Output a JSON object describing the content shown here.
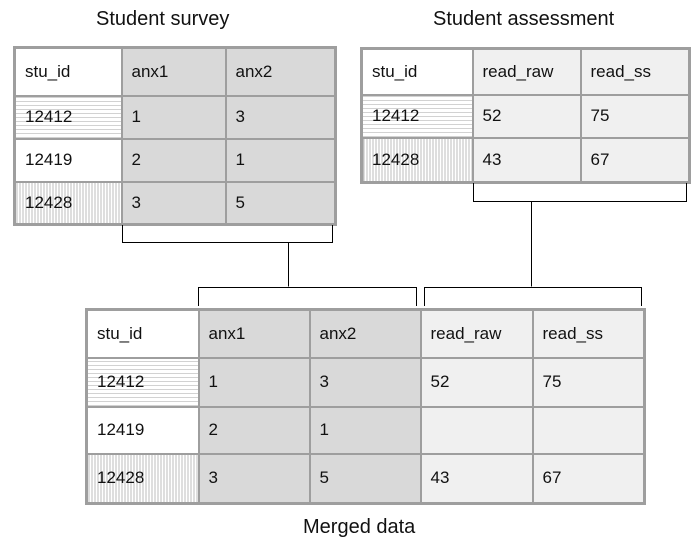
{
  "survey": {
    "title": "Student survey",
    "headers": [
      "stu_id",
      "anx1",
      "anx2"
    ],
    "rows": [
      [
        "12412",
        "1",
        "3"
      ],
      [
        "12419",
        "2",
        "1"
      ],
      [
        "12428",
        "3",
        "5"
      ]
    ]
  },
  "assessment": {
    "title": "Student assessment",
    "headers": [
      "stu_id",
      "read_raw",
      "read_ss"
    ],
    "rows": [
      [
        "12412",
        "52",
        "75"
      ],
      [
        "12428",
        "43",
        "67"
      ]
    ]
  },
  "merged": {
    "title": "Merged data",
    "headers": [
      "stu_id",
      "anx1",
      "anx2",
      "read_raw",
      "read_ss"
    ],
    "rows": [
      [
        "12412",
        "1",
        "3",
        "52",
        "75"
      ],
      [
        "12419",
        "2",
        "1",
        "",
        ""
      ],
      [
        "12428",
        "3",
        "5",
        "43",
        "67"
      ]
    ]
  },
  "colors": {
    "border": "#9e9e9e",
    "survey_fill": "#d9d9d9",
    "assessment_fill": "#f0f0f0",
    "connector": "#000000"
  }
}
